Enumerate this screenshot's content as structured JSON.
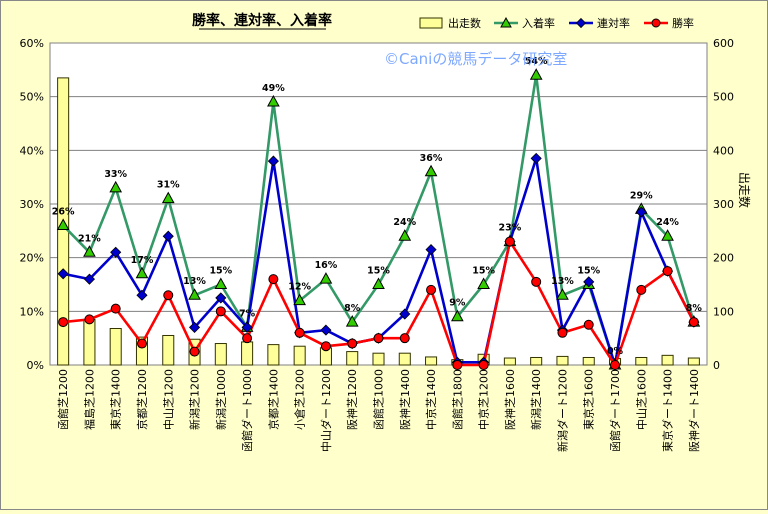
{
  "chart_data": {
    "type": "bar",
    "title": "勝率、連対率、入着率",
    "watermark": "©Caniの競馬データ研究室",
    "left_axis": {
      "min": 0,
      "max": 60,
      "unit": "%",
      "ticks": [
        "0%",
        "10%",
        "20%",
        "30%",
        "40%",
        "50%",
        "60%"
      ]
    },
    "right_axis": {
      "label": "出走数",
      "min": 0,
      "max": 600,
      "ticks": [
        "0",
        "100",
        "200",
        "300",
        "400",
        "500",
        "600"
      ]
    },
    "grid": true,
    "legend_position": "top-right",
    "categories": [
      "函館芝1200",
      "福島芝1200",
      "東京芝1400",
      "京都芝1200",
      "中山芝1200",
      "新潟芝1200",
      "新潟芝1000",
      "函館ダート1000",
      "京都芝1400",
      "小倉芝1200",
      "中山ダート1200",
      "阪神芝1200",
      "函館芝1000",
      "阪神芝1400",
      "中京芝1400",
      "函館芝1800",
      "中京芝1200",
      "阪神芝1600",
      "新潟芝1400",
      "新潟ダート1200",
      "東京芝1600",
      "函館ダート1700",
      "中山芝1600",
      "東京ダート1400",
      "阪神ダート1400"
    ],
    "series": [
      {
        "name": "出走数",
        "kind": "bar",
        "axis": "right",
        "color": "#ffff99",
        "values": [
          535,
          85,
          68,
          52,
          55,
          48,
          40,
          43,
          38,
          35,
          32,
          25,
          22,
          22,
          15,
          10,
          20,
          13,
          14,
          16,
          14,
          12,
          14,
          18,
          13
        ]
      },
      {
        "name": "入着率",
        "kind": "line",
        "axis": "left",
        "color": "#339966",
        "marker": "triangle",
        "values": [
          26,
          21,
          33,
          17,
          31,
          13,
          15,
          7,
          49,
          12,
          16,
          8,
          15,
          24,
          36,
          9,
          15,
          23,
          54,
          13,
          15,
          0,
          29,
          24,
          8
        ]
      },
      {
        "name": "連対率",
        "kind": "line",
        "axis": "left",
        "color": "#0000cc",
        "marker": "diamond",
        "values": [
          17,
          16,
          21,
          13,
          24,
          7,
          12.5,
          7,
          38,
          6,
          6.5,
          4,
          5,
          9.5,
          21.5,
          0.5,
          0.5,
          23,
          38.5,
          6.5,
          15.5,
          0,
          28.5,
          17.5,
          8
        ]
      },
      {
        "name": "勝率",
        "kind": "line",
        "axis": "left",
        "color": "#ff0000",
        "marker": "circle",
        "values": [
          8,
          8.5,
          10.5,
          4,
          13,
          2.5,
          10,
          5,
          16,
          6,
          3.5,
          4,
          5,
          5,
          14,
          0,
          0,
          23,
          15.5,
          6,
          7.5,
          0,
          14,
          17.5,
          8
        ]
      }
    ],
    "data_labels": {
      "series": "入着率",
      "labels": [
        "26%",
        "21%",
        "33%",
        "17%",
        "31%",
        "13%",
        "15%",
        "7%",
        "49%",
        "12%",
        "16%",
        "8%",
        "15%",
        "24%",
        "36%",
        "9%",
        "15%",
        "23%",
        "54%",
        "13%",
        "15%",
        "0%",
        "29%",
        "24%",
        "8%"
      ]
    }
  }
}
